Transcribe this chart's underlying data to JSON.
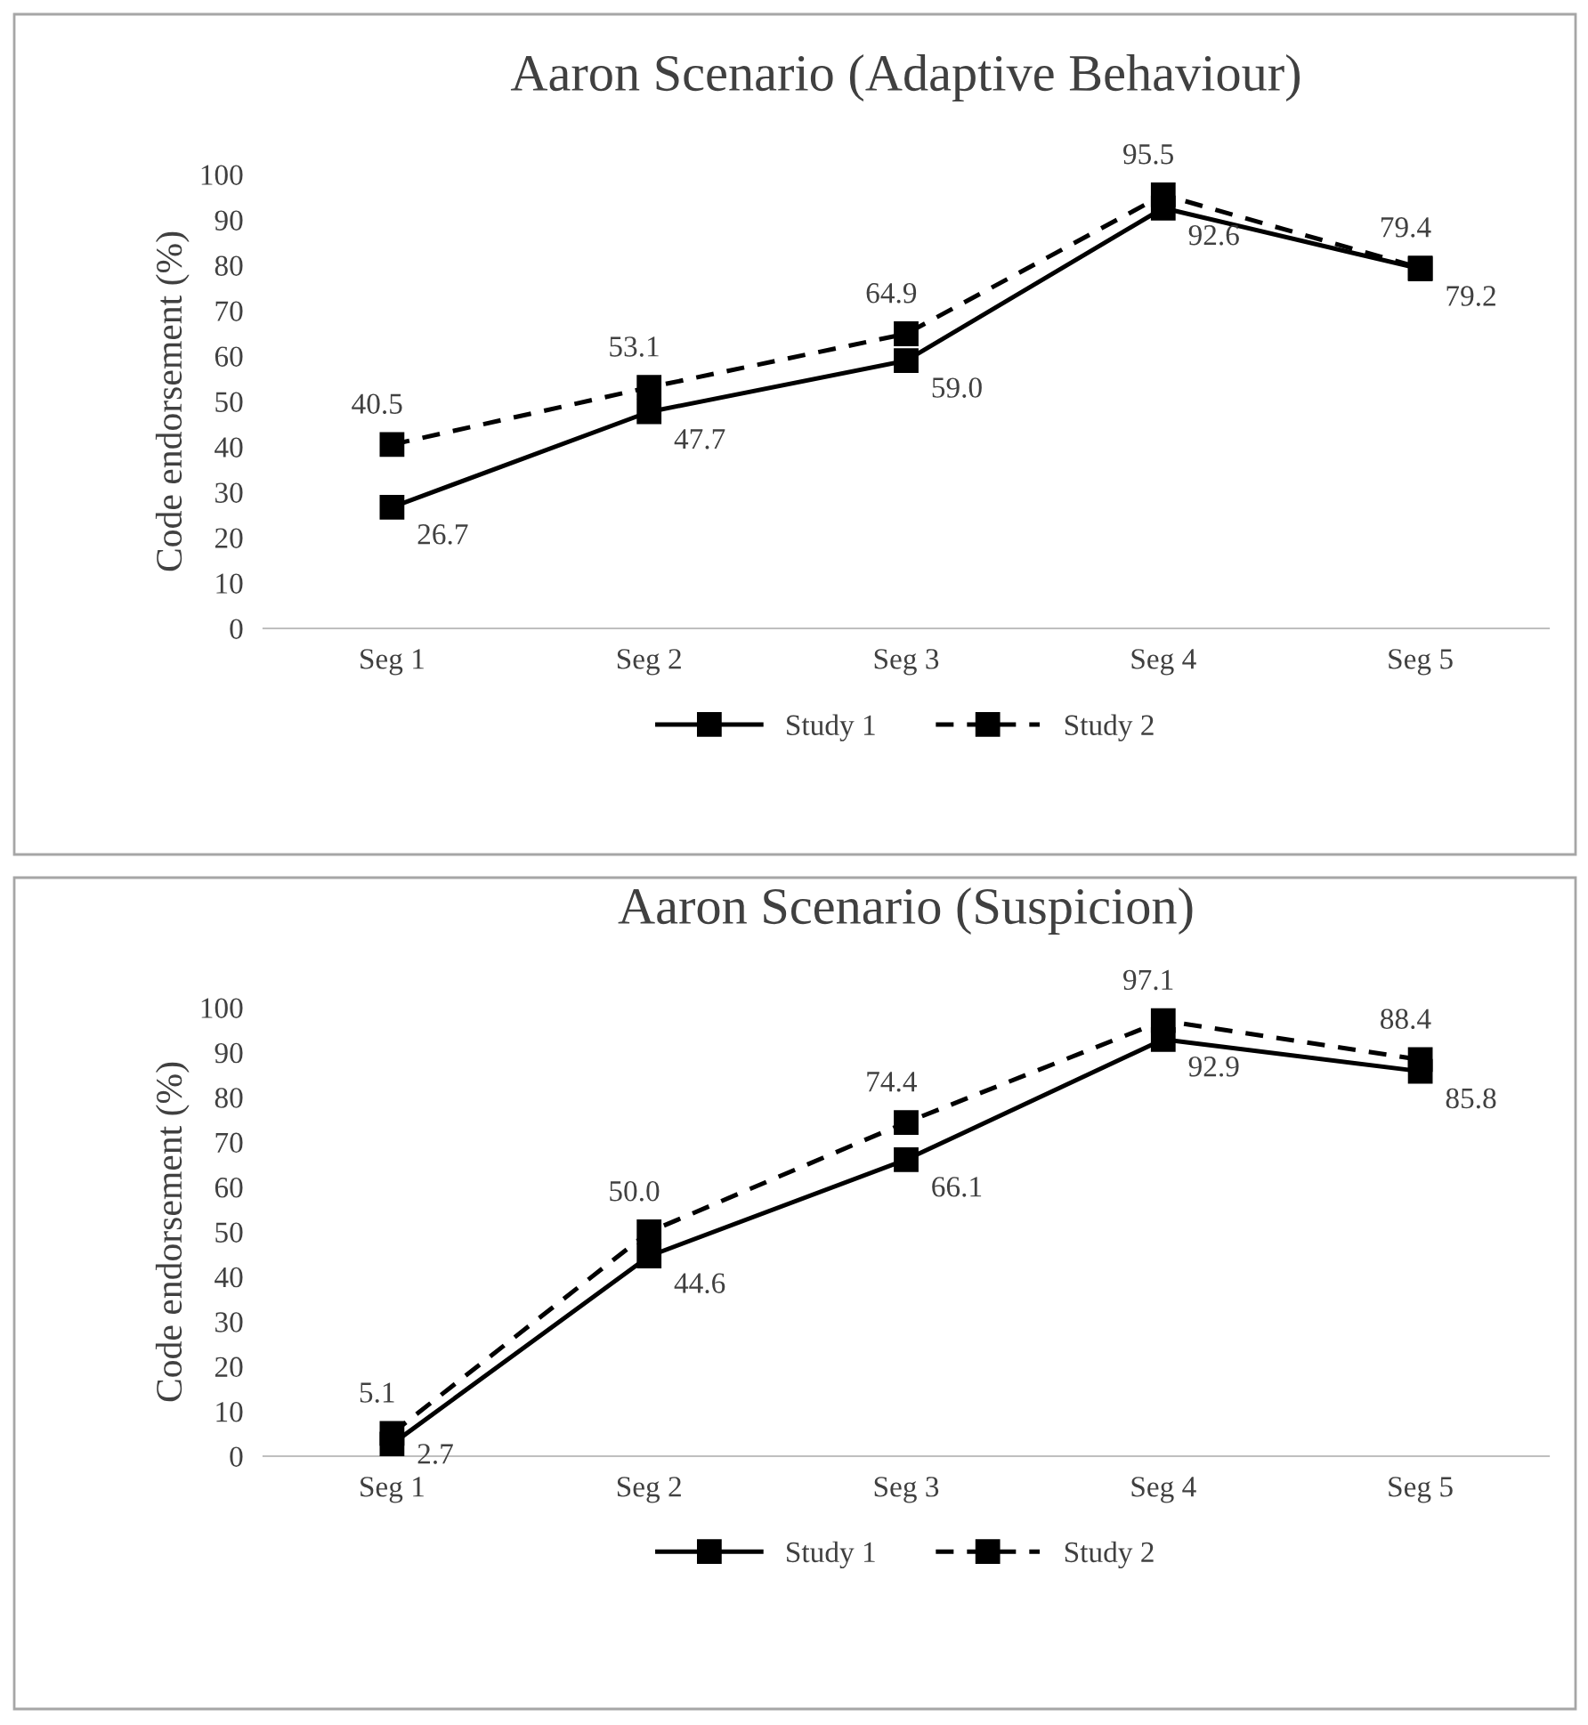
{
  "chart_data": [
    {
      "type": "line",
      "title": "Aaron Scenario (Adaptive Behaviour)",
      "ylabel": "Code endorsement (%)",
      "categories": [
        "Seg 1",
        "Seg 2",
        "Seg 3",
        "Seg 4",
        "Seg 5"
      ],
      "ylim": [
        0,
        100
      ],
      "yticks": [
        0,
        10,
        20,
        30,
        40,
        50,
        60,
        70,
        80,
        90,
        100
      ],
      "grid": false,
      "legend": "bottom",
      "marker": "square",
      "series": [
        {
          "name": "Study 1",
          "color": "#000000",
          "line_style": "solid",
          "values": [
            26.7,
            47.7,
            59.0,
            92.6,
            79.2
          ],
          "value_labels": [
            "26.7",
            "47.7",
            "59.0",
            "92.6",
            "79.2"
          ]
        },
        {
          "name": "Study 2",
          "color": "#000000",
          "line_style": "dashed",
          "values": [
            40.5,
            53.1,
            64.9,
            95.5,
            79.4
          ],
          "value_labels": [
            "40.5",
            "53.1",
            "64.9",
            "95.5",
            "79.4"
          ]
        }
      ]
    },
    {
      "type": "line",
      "title": "Aaron Scenario (Suspicion)",
      "ylabel": "Code endorsement (%)",
      "categories": [
        "Seg 1",
        "Seg 2",
        "Seg 3",
        "Seg 4",
        "Seg 5"
      ],
      "ylim": [
        0,
        100
      ],
      "yticks": [
        0,
        10,
        20,
        30,
        40,
        50,
        60,
        70,
        80,
        90,
        100
      ],
      "grid": false,
      "legend": "bottom",
      "marker": "square",
      "series": [
        {
          "name": "Study 1",
          "color": "#000000",
          "line_style": "solid",
          "values": [
            2.7,
            44.6,
            66.1,
            92.9,
            85.8
          ],
          "value_labels": [
            "2.7",
            "44.6",
            "66.1",
            "92.9",
            "85.8"
          ]
        },
        {
          "name": "Study 2",
          "color": "#000000",
          "line_style": "dashed",
          "values": [
            5.1,
            50.0,
            74.4,
            97.1,
            88.4
          ],
          "value_labels": [
            "5.1",
            "50.0",
            "74.4",
            "97.1",
            "88.4"
          ]
        }
      ]
    }
  ]
}
